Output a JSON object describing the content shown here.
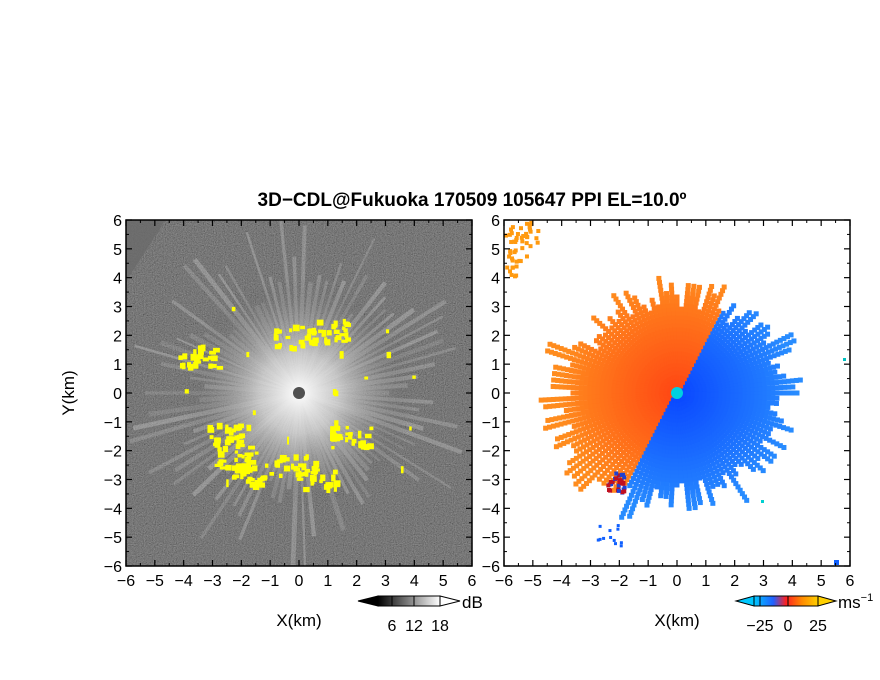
{
  "chart_data": [
    {
      "type": "heatmap",
      "title": "3D−CDL@Fukuoka 170509 105647 PPI EL=10.0º",
      "panel": "reflectivity",
      "xlabel": "X(km)",
      "ylabel": "Y(km)",
      "xlim": [
        -6,
        6
      ],
      "ylim": [
        -6,
        6
      ],
      "xticks": [
        "−6",
        "−5",
        "−4",
        "−3",
        "−2",
        "−1",
        "0",
        "1",
        "2",
        "3",
        "4",
        "5",
        "6"
      ],
      "yticks": [
        "−6",
        "−5",
        "−4",
        "−3",
        "−2",
        "−1",
        "0",
        "1",
        "2",
        "3",
        "4",
        "5",
        "6"
      ],
      "colorbar": {
        "unit": "dB",
        "ticks": [
          "6",
          "12",
          "18"
        ],
        "colors": [
          "#000000",
          "#ffffff"
        ]
      },
      "highlight_color": "#ffff00",
      "highlight_regions_km": [
        {
          "x": -2.7,
          "y": -1.4
        },
        {
          "x": -2.2,
          "y": -2.2
        },
        {
          "x": -1.9,
          "y": -2.8
        },
        {
          "x": -0.2,
          "y": -2.5
        },
        {
          "x": 0.6,
          "y": -2.9
        },
        {
          "x": 1.8,
          "y": -1.5
        },
        {
          "x": 1.0,
          "y": 2.2
        },
        {
          "x": -0.2,
          "y": 2.0
        },
        {
          "x": -3.5,
          "y": 1.3
        }
      ]
    },
    {
      "type": "heatmap",
      "panel": "doppler-velocity",
      "xlabel": "X(km)",
      "xlim": [
        -6,
        6
      ],
      "ylim": [
        -6,
        6
      ],
      "xticks": [
        "−6",
        "−5",
        "−4",
        "−3",
        "−2",
        "−1",
        "0",
        "1",
        "2",
        "3",
        "4",
        "5",
        "6"
      ],
      "yticks": [
        "−6",
        "−5",
        "−4",
        "−3",
        "−2",
        "−1",
        "0",
        "1",
        "2",
        "3",
        "4",
        "5",
        "6"
      ],
      "colorbar": {
        "unit": "ms",
        "unit_exp": "−1",
        "ticks": [
          "−25",
          "0",
          "25"
        ],
        "colors": [
          "#00a0e0",
          "#0030ff",
          "#ff2020",
          "#ff9000",
          "#ffd000"
        ]
      },
      "colors": {
        "approach": "#1060ff",
        "recede": "#ff5a10",
        "center": "#00d0d0"
      }
    }
  ]
}
